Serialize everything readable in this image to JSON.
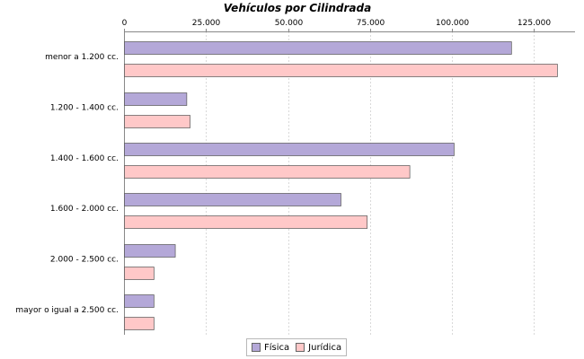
{
  "chart_data": {
    "type": "bar",
    "orientation": "horizontal",
    "title": "Vehículos por Cilindrada",
    "categories": [
      "menor a 1.200 cc.",
      "1.200 - 1.400 cc.",
      "1.400 - 1.600 cc.",
      "1.600 - 2.000 cc.",
      "2.000 - 2.500 cc.",
      "mayor o igual a 2.500 cc."
    ],
    "series": [
      {
        "name": "Física",
        "color": "#b4a8d8",
        "values": [
          118000,
          19000,
          100500,
          66000,
          15500,
          9000
        ]
      },
      {
        "name": "Jurídica",
        "color": "#ffc8c8",
        "values": [
          132000,
          20000,
          87000,
          74000,
          9000,
          9000
        ]
      }
    ],
    "xlim": [
      0,
      137500
    ],
    "xticks": [
      {
        "value": 0,
        "label": "0"
      },
      {
        "value": 25000,
        "label": "25.000"
      },
      {
        "value": 50000,
        "label": "50.000"
      },
      {
        "value": 75000,
        "label": "75.000"
      },
      {
        "value": 100000,
        "label": "100.000"
      },
      {
        "value": 125000,
        "label": "125.000"
      }
    ],
    "grid": true,
    "legend_position": "bottom"
  }
}
